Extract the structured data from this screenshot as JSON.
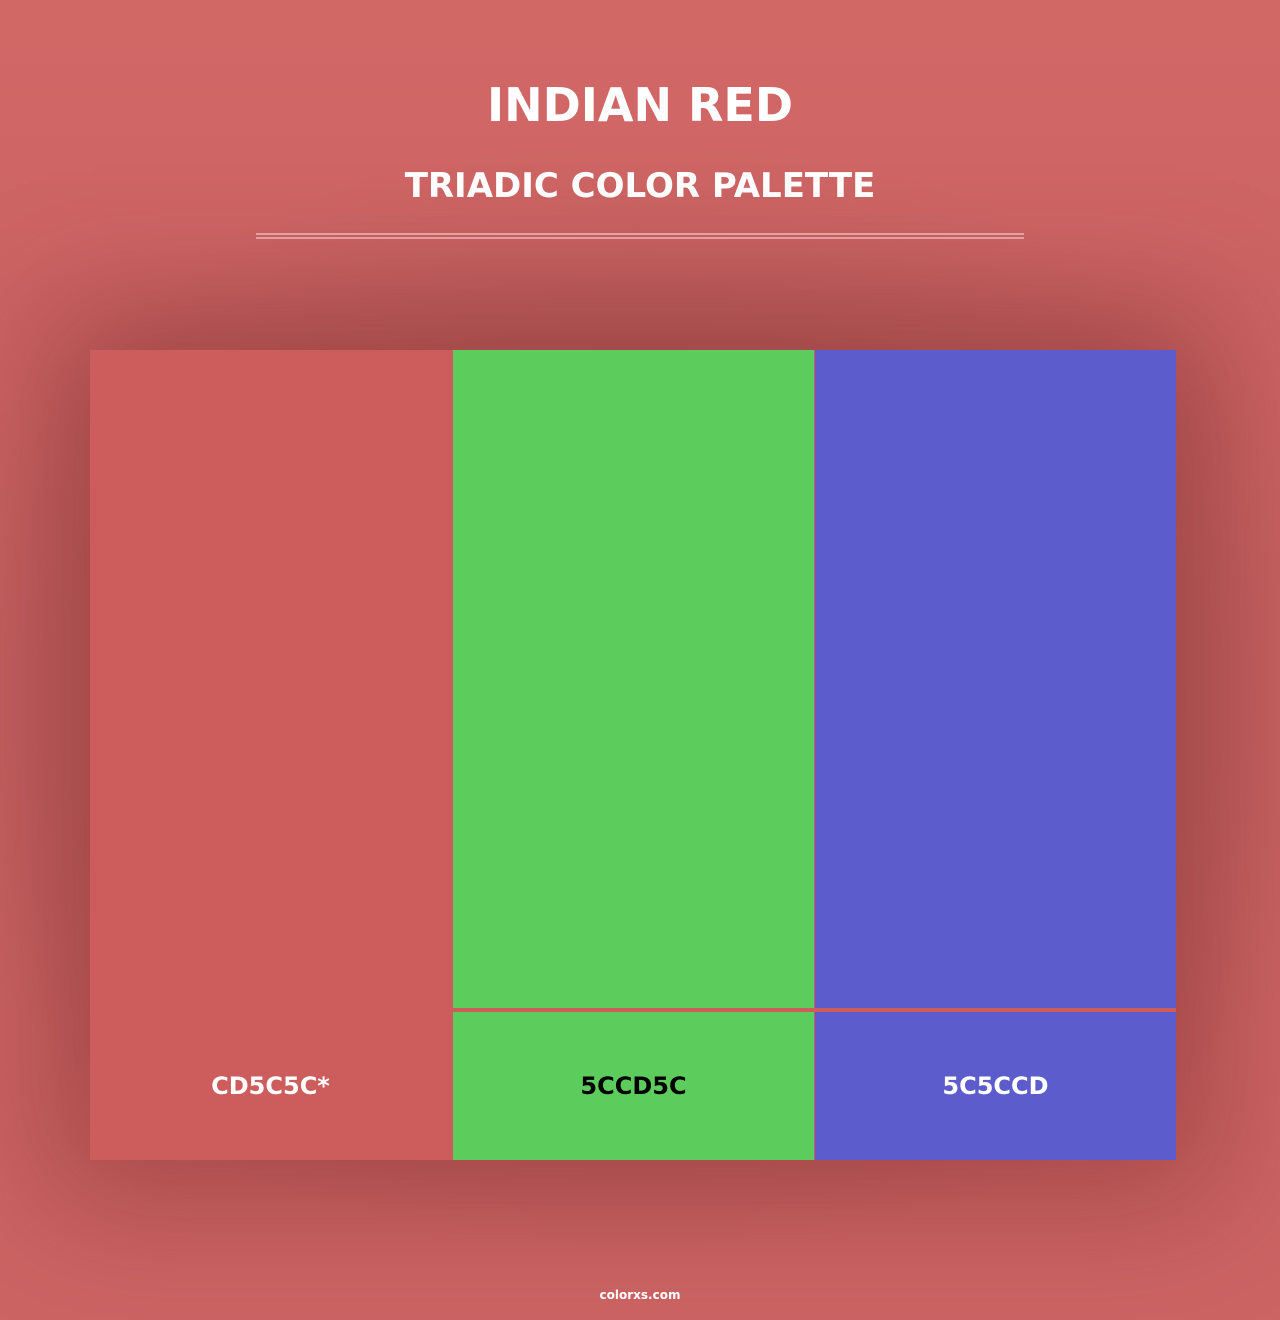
{
  "header": {
    "title": "INDIAN RED",
    "subtitle": "TRIADIC COLOR PALETTE"
  },
  "colors": [
    {
      "hex": "#CD5C5C",
      "label": "CD5C5C*",
      "text_color": "#ffffff"
    },
    {
      "hex": "#5CCD5C",
      "label": "5CCD5C",
      "text_color": "#000000"
    },
    {
      "hex": "#5C5CCD",
      "label": "5C5CCD",
      "text_color": "#ffffff"
    }
  ],
  "footer": {
    "site": "colorxs.com"
  }
}
